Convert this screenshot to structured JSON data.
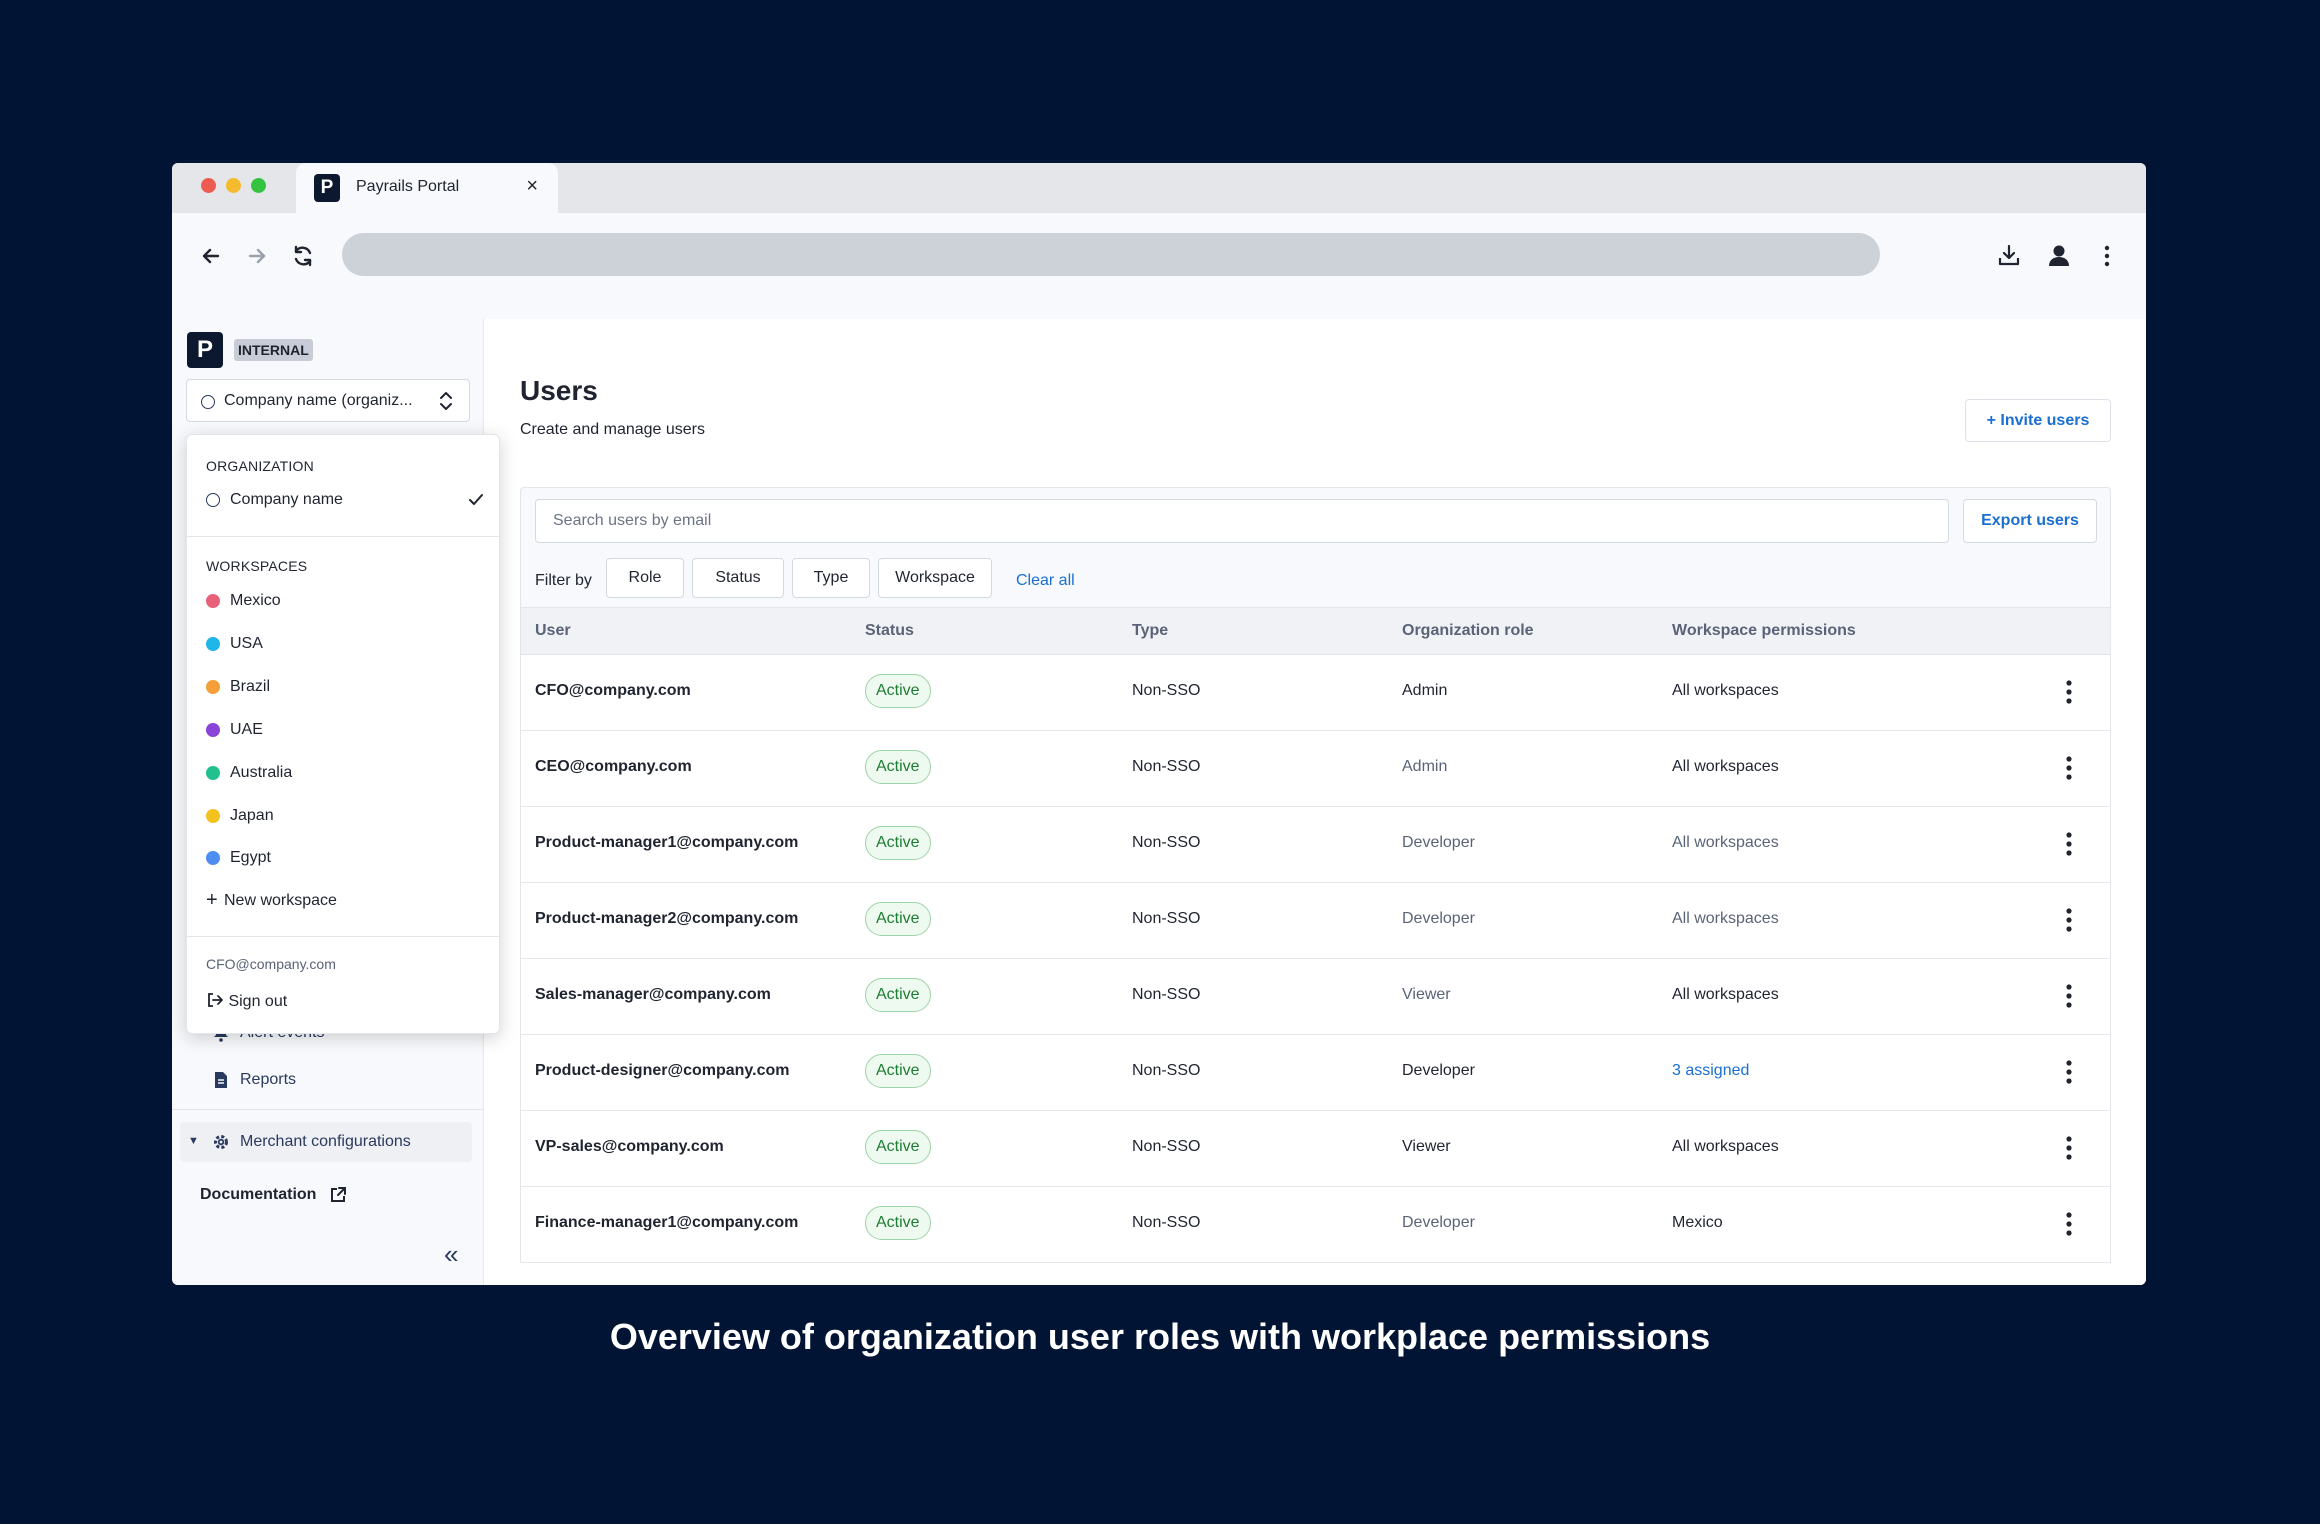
{
  "browser": {
    "tab_title": "Payrails Portal",
    "tab_close": "×"
  },
  "sidebar": {
    "logo_letter": "P",
    "badge": "INTERNAL",
    "org_select_label": "Company name (organiz...",
    "items": [
      {
        "label": "Alert events",
        "icon": "bell-icon"
      },
      {
        "label": "Reports",
        "icon": "document-icon"
      }
    ],
    "merchant_configurations": "Merchant configurations",
    "documentation": "Documentation",
    "collapse": "«"
  },
  "dropdown": {
    "organization_heading": "ORGANIZATION",
    "organization_name": "Company name",
    "workspaces_heading": "WORKSPACES",
    "workspaces": [
      {
        "name": "Mexico",
        "color": "#e8607a"
      },
      {
        "name": "USA",
        "color": "#1fb6e8"
      },
      {
        "name": "Brazil",
        "color": "#f59f3a"
      },
      {
        "name": "UAE",
        "color": "#8a45d8"
      },
      {
        "name": "Australia",
        "color": "#21c08f"
      },
      {
        "name": "Japan",
        "color": "#f4c21e"
      },
      {
        "name": "Egypt",
        "color": "#4f8ef0"
      }
    ],
    "new_workspace": "New workspace",
    "user_email": "CFO@company.com",
    "sign_out": "Sign out"
  },
  "main": {
    "title": "Users",
    "subtitle": "Create and manage users",
    "invite_button": "Invite users",
    "search_placeholder": "Search users by email",
    "export_button": "Export users",
    "filter_label": "Filter by",
    "filters": [
      "Role",
      "Status",
      "Type",
      "Workspace"
    ],
    "clear_all": "Clear all",
    "columns": [
      "User",
      "Status",
      "Type",
      "Organization role",
      "Workspace permissions"
    ],
    "rows": [
      {
        "user": "CFO@company.com",
        "status": "Active",
        "type": "Non-SSO",
        "role": "Admin",
        "permissions": "All workspaces"
      },
      {
        "user": "CEO@company.com",
        "status": "Active",
        "type": "Non-SSO",
        "role": "Admin",
        "permissions": "All workspaces"
      },
      {
        "user": "Product-manager1@company.com",
        "status": "Active",
        "type": "Non-SSO",
        "role": "Developer",
        "permissions": "All workspaces"
      },
      {
        "user": "Product-manager2@company.com",
        "status": "Active",
        "type": "Non-SSO",
        "role": "Developer",
        "permissions": "All workspaces"
      },
      {
        "user": "Sales-manager@company.com",
        "status": "Active",
        "type": "Non-SSO",
        "role": "Viewer",
        "permissions": "All workspaces"
      },
      {
        "user": "Product-designer@company.com",
        "status": "Active",
        "type": "Non-SSO",
        "role": "Developer",
        "permissions": "3 assigned"
      },
      {
        "user": "VP-sales@company.com",
        "status": "Active",
        "type": "Non-SSO",
        "role": "Viewer",
        "permissions": "All workspaces"
      },
      {
        "user": "Finance-manager1@company.com",
        "status": "Active",
        "type": "Non-SSO",
        "role": "Developer",
        "permissions": "Mexico"
      }
    ]
  },
  "caption": "Overview of organization user roles with workplace permissions",
  "colors": {
    "background": "#011433",
    "accent": "#1a6fd1",
    "status_active": "#1e7d34"
  }
}
